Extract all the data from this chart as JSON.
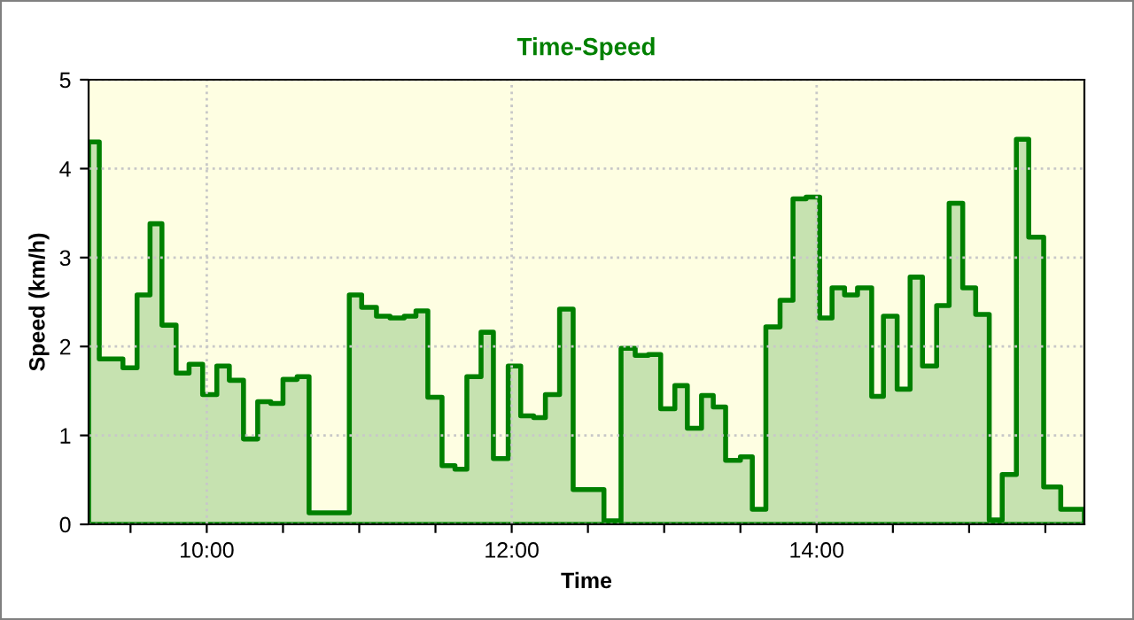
{
  "chart_data": {
    "type": "area",
    "title": "Time-Speed",
    "xlabel": "Time",
    "ylabel": "Speed (km/h)",
    "x": [
      9.225,
      9.295,
      9.45,
      9.543,
      9.628,
      9.706,
      9.799,
      9.884,
      9.973,
      10.066,
      10.148,
      10.241,
      10.334,
      10.42,
      10.5,
      10.593,
      10.671,
      10.935,
      11.016,
      11.113,
      11.202,
      11.295,
      11.372,
      11.45,
      11.543,
      11.628,
      11.706,
      11.799,
      11.88,
      11.977,
      12.059,
      12.144,
      12.221,
      12.314,
      12.403,
      12.605,
      12.717,
      12.81,
      12.896,
      12.977,
      13.07,
      13.152,
      13.245,
      13.322,
      13.403,
      13.5,
      13.578,
      13.667,
      13.76,
      13.845,
      13.931,
      14.02,
      14.101,
      14.183,
      14.268,
      14.361,
      14.438,
      14.528,
      14.613,
      14.694,
      14.787,
      14.869,
      14.958,
      15.043,
      15.132,
      15.217,
      15.31,
      15.391,
      15.489,
      15.601,
      15.756
    ],
    "series": [
      {
        "color": "#008000",
        "values": [
          4.3,
          1.86,
          1.76,
          2.58,
          3.38,
          2.24,
          1.7,
          1.8,
          1.46,
          1.78,
          1.62,
          0.96,
          1.38,
          1.36,
          1.63,
          1.66,
          0.13,
          2.58,
          2.44,
          2.34,
          2.32,
          2.34,
          2.4,
          1.43,
          0.66,
          0.62,
          1.66,
          2.16,
          0.74,
          1.78,
          1.22,
          1.2,
          1.46,
          2.42,
          0.39,
          0.04,
          1.98,
          1.9,
          1.91,
          1.3,
          1.56,
          1.08,
          1.45,
          1.32,
          0.72,
          0.76,
          0.17,
          2.22,
          2.52,
          3.66,
          3.68,
          2.32,
          2.66,
          2.58,
          2.66,
          1.44,
          2.34,
          1.52,
          2.78,
          1.78,
          2.46,
          3.61,
          2.66,
          2.36,
          0.05,
          0.56,
          4.33,
          3.23,
          0.42,
          0.17,
          0.17
        ]
      }
    ],
    "xlim": [
      9.225,
      15.756
    ],
    "xticks": [
      {
        "value": 9.5,
        "label": null
      },
      {
        "value": 10,
        "label": "10:00"
      },
      {
        "value": 10.5,
        "label": null
      },
      {
        "value": 11,
        "label": null
      },
      {
        "value": 11.5,
        "label": null
      },
      {
        "value": 12,
        "label": "12:00"
      },
      {
        "value": 12.5,
        "label": null
      },
      {
        "value": 13,
        "label": null
      },
      {
        "value": 13.5,
        "label": null
      },
      {
        "value": 14,
        "label": "14:00"
      },
      {
        "value": 14.5,
        "label": null
      },
      {
        "value": 15,
        "label": null
      },
      {
        "value": 15.5,
        "label": null
      }
    ],
    "ylim": [
      0,
      5
    ],
    "yticks": [
      0,
      1,
      2,
      3,
      4,
      5
    ],
    "grid": true,
    "line_style": "solid"
  }
}
